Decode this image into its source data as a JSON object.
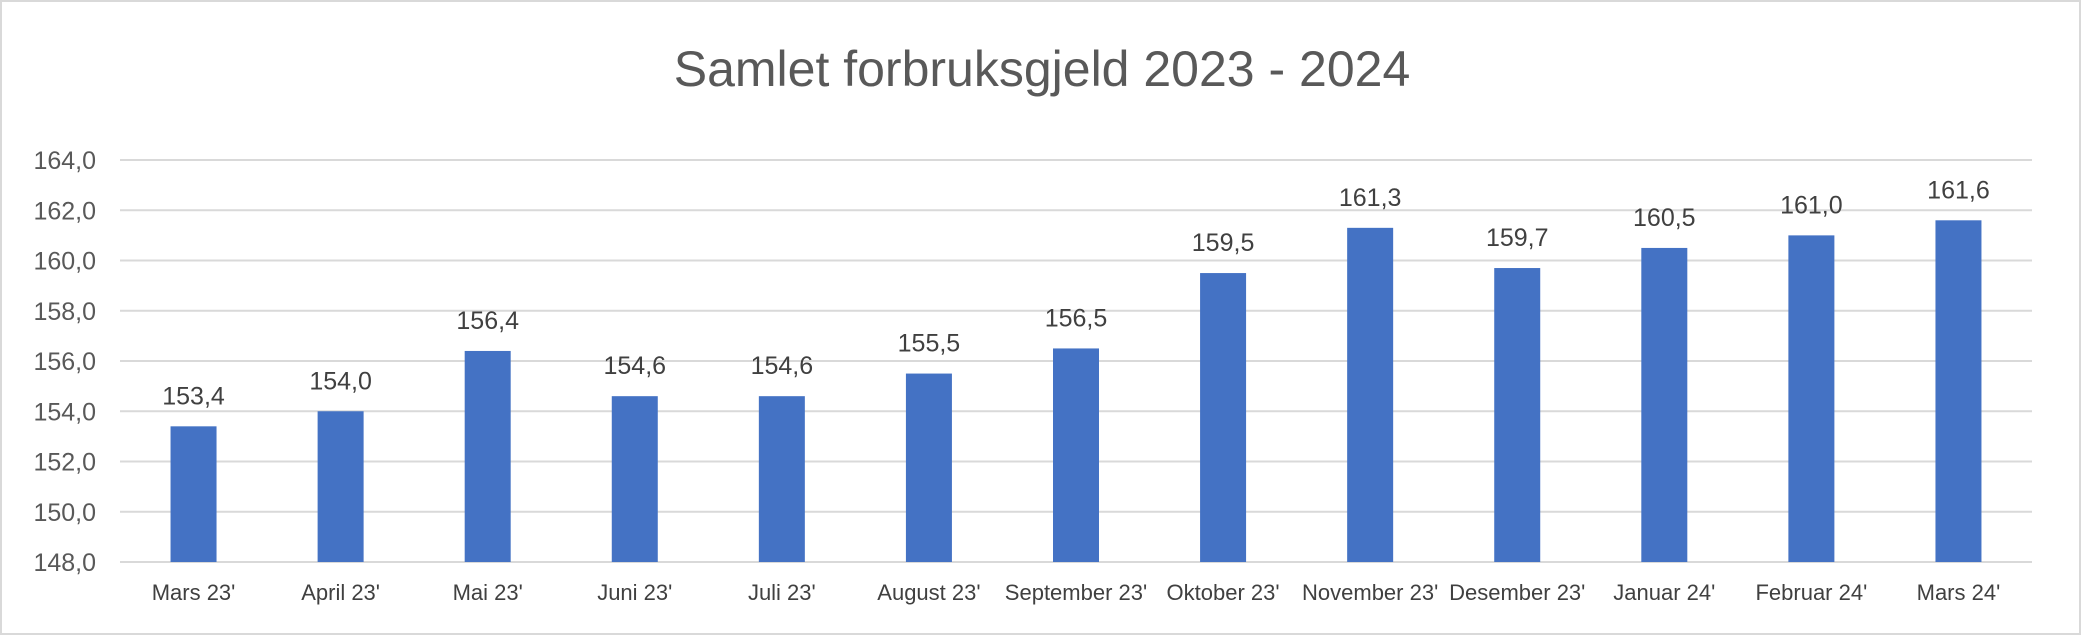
{
  "chart_data": {
    "type": "bar",
    "title": "Samlet forbruksgjeld 2023 - 2024",
    "xlabel": "",
    "ylabel": "",
    "ylim": [
      148,
      164
    ],
    "yticks": [
      "148,0",
      "150,0",
      "152,0",
      "154,0",
      "156,0",
      "158,0",
      "160,0",
      "162,0",
      "164,0"
    ],
    "ytick_values": [
      148,
      150,
      152,
      154,
      156,
      158,
      160,
      162,
      164
    ],
    "categories": [
      "Mars 23'",
      "April 23'",
      "Mai 23'",
      "Juni 23'",
      "Juli 23'",
      "August 23'",
      "September 23'",
      "Oktober 23'",
      "November 23'",
      "Desember 23'",
      "Januar 24'",
      "Februar 24'",
      "Mars 24'"
    ],
    "values": [
      153.4,
      154.0,
      156.4,
      154.6,
      154.6,
      155.5,
      156.5,
      159.5,
      161.3,
      159.7,
      160.5,
      161.0,
      161.6
    ],
    "value_labels": [
      "153,4",
      "154,0",
      "156,4",
      "154,6",
      "154,6",
      "155,5",
      "156,5",
      "159,5",
      "161,3",
      "159,7",
      "160,5",
      "161,0",
      "161,6"
    ],
    "grid": true,
    "legend": "none",
    "bar_color": "#4472C4",
    "grid_color": "#D9D9D9"
  }
}
